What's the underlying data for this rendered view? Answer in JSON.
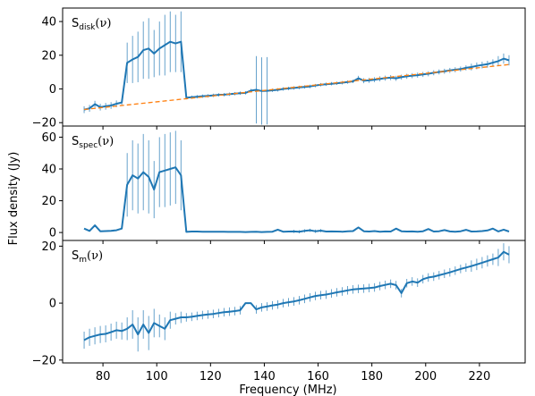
{
  "chart_data": [
    {
      "type": "line",
      "panel_label": {
        "base": "S",
        "sub": "disk",
        "arg": "(ν)"
      },
      "x": [
        73,
        75,
        77,
        79,
        81,
        83,
        85,
        87,
        89,
        91,
        93,
        95,
        97,
        99,
        101,
        103,
        105,
        107,
        109,
        111,
        113,
        115,
        117,
        119,
        121,
        123,
        125,
        127,
        129,
        131,
        133,
        135,
        137,
        139,
        141,
        143,
        145,
        147,
        149,
        151,
        153,
        155,
        157,
        159,
        161,
        163,
        165,
        167,
        169,
        171,
        173,
        175,
        177,
        179,
        181,
        183,
        185,
        187,
        189,
        191,
        193,
        195,
        197,
        199,
        201,
        203,
        205,
        207,
        209,
        211,
        213,
        215,
        217,
        219,
        221,
        223,
        225,
        227,
        229,
        231
      ],
      "series": [
        {
          "values": [
            -12.3,
            -11.5,
            -9,
            -10.8,
            -10.3,
            -9.8,
            -8.8,
            -8,
            15.5,
            17.5,
            19,
            23,
            24,
            21,
            24,
            26,
            28,
            27,
            28,
            -5.2,
            -4.9,
            -4.6,
            -4.3,
            -4.1,
            -3.8,
            -3.5,
            -3.4,
            -3.1,
            -2.8,
            -2.5,
            -2.3,
            -1,
            -0.5,
            -1.2,
            -1.1,
            -0.8,
            -0.5,
            0,
            0.3,
            0.6,
            0.9,
            1.2,
            1.5,
            2,
            2.5,
            2.8,
            3.1,
            3.4,
            3.7,
            4.1,
            4.5,
            6.3,
            4.9,
            5.1,
            5.5,
            6,
            6.4,
            6.7,
            6.3,
            7,
            7.5,
            7.9,
            8.2,
            8.6,
            9,
            9.6,
            10.1,
            10.5,
            11,
            11.4,
            11.8,
            12.5,
            13,
            13.7,
            14.2,
            14.7,
            15.6,
            16.5,
            18,
            17
          ],
          "errors": [
            2,
            2,
            2,
            2,
            2,
            2,
            2,
            2,
            12,
            14,
            15,
            17,
            18,
            14,
            16,
            18,
            18,
            17,
            18,
            1,
            1,
            1,
            1,
            1,
            1,
            1,
            1,
            1,
            1,
            1,
            1,
            1,
            20,
            20,
            20,
            1,
            1,
            1,
            1,
            1,
            1,
            1,
            1,
            1,
            1,
            1,
            1,
            1,
            1,
            1,
            1,
            1.5,
            1.5,
            1.5,
            1.5,
            1.5,
            1.5,
            1.5,
            1.5,
            1.5,
            1.5,
            1.5,
            1.5,
            1.5,
            1.5,
            1.5,
            1.5,
            1.5,
            1.5,
            1.5,
            1.5,
            1.5,
            2,
            2,
            2,
            2,
            2,
            3,
            3,
            3
          ],
          "color": "#1f77b4"
        },
        {
          "x": [
            73,
            231
          ],
          "values": [
            -12.2,
            14.5
          ],
          "line_style": "dashed",
          "color": "#ff7f0e"
        }
      ],
      "yticks": [
        -20,
        0,
        20,
        40
      ],
      "ylim": [
        -22,
        48
      ]
    },
    {
      "type": "line",
      "panel_label": {
        "base": "S",
        "sub": "spec",
        "arg": "(ν)"
      },
      "x": [
        73,
        75,
        77,
        79,
        81,
        83,
        85,
        87,
        89,
        91,
        93,
        95,
        97,
        99,
        101,
        103,
        105,
        107,
        109,
        111,
        113,
        115,
        117,
        119,
        121,
        123,
        125,
        127,
        129,
        131,
        133,
        135,
        137,
        139,
        141,
        143,
        145,
        147,
        149,
        151,
        153,
        155,
        157,
        159,
        161,
        163,
        165,
        167,
        169,
        171,
        173,
        175,
        177,
        179,
        181,
        183,
        185,
        187,
        189,
        191,
        193,
        195,
        197,
        199,
        201,
        203,
        205,
        207,
        209,
        211,
        213,
        215,
        217,
        219,
        221,
        223,
        225,
        227,
        229,
        231
      ],
      "series": [
        {
          "values": [
            2.5,
            1,
            4.5,
            0.8,
            0.9,
            1.1,
            1.4,
            2.5,
            30,
            36,
            34,
            38,
            35,
            27,
            38,
            39,
            40,
            41,
            36,
            0.4,
            0.6,
            0.6,
            0.5,
            0.5,
            0.5,
            0.5,
            0.5,
            0.4,
            0.4,
            0.4,
            0.3,
            0.4,
            0.5,
            0.3,
            0.4,
            0.5,
            1.8,
            0.5,
            0.6,
            0.7,
            0.5,
            1,
            1.4,
            0.8,
            1.2,
            0.6,
            0.7,
            0.6,
            0.5,
            0.8,
            0.9,
            3.2,
            0.8,
            0.6,
            0.9,
            0.5,
            0.7,
            0.6,
            2.5,
            0.8,
            0.6,
            0.7,
            0.5,
            0.8,
            2.2,
            0.6,
            0.8,
            1.5,
            0.7,
            0.5,
            0.8,
            1.7,
            0.6,
            0.7,
            0.9,
            1.3,
            2.5,
            0.7,
            1.8,
            0.6
          ],
          "errors": [
            0,
            0,
            0,
            0,
            0,
            0,
            0,
            0,
            20,
            22,
            22,
            24,
            23,
            18,
            22,
            23,
            23,
            23,
            22,
            0,
            0,
            0,
            0,
            0,
            0,
            0,
            0,
            0,
            0,
            0,
            0,
            0,
            0,
            0,
            0,
            0,
            0,
            0,
            0,
            1,
            1,
            1,
            1,
            1,
            1,
            0,
            0,
            0,
            0,
            0,
            0,
            0,
            0,
            0,
            0,
            0,
            0,
            0,
            0,
            0,
            0,
            0,
            0,
            0,
            0,
            0,
            0,
            0,
            0,
            0,
            0,
            0,
            0,
            0,
            0,
            0,
            0,
            0,
            0,
            0
          ],
          "color": "#1f77b4"
        }
      ],
      "yticks": [
        0,
        20,
        40,
        60
      ],
      "ylim": [
        -5,
        67
      ]
    },
    {
      "type": "line",
      "panel_label": {
        "base": "S",
        "sub": "m",
        "arg": "(ν)"
      },
      "x": [
        73,
        75,
        77,
        79,
        81,
        83,
        85,
        87,
        89,
        91,
        93,
        95,
        97,
        99,
        101,
        103,
        105,
        107,
        109,
        111,
        113,
        115,
        117,
        119,
        121,
        123,
        125,
        127,
        129,
        131,
        133,
        135,
        137,
        139,
        141,
        143,
        145,
        147,
        149,
        151,
        153,
        155,
        157,
        159,
        161,
        163,
        165,
        167,
        169,
        171,
        173,
        175,
        177,
        179,
        181,
        183,
        185,
        187,
        189,
        191,
        193,
        195,
        197,
        199,
        201,
        203,
        205,
        207,
        209,
        211,
        213,
        215,
        217,
        219,
        221,
        223,
        225,
        227,
        229,
        231
      ],
      "series": [
        {
          "values": [
            -13,
            -12,
            -11.5,
            -11,
            -10.8,
            -10.2,
            -9.5,
            -9.8,
            -9,
            -7.5,
            -11,
            -7.5,
            -10.5,
            -7,
            -8,
            -9,
            -6,
            -5.5,
            -5,
            -5,
            -4.8,
            -4.5,
            -4.2,
            -4,
            -3.8,
            -3.5,
            -3.2,
            -3,
            -2.8,
            -2.5,
            0,
            0,
            -2.2,
            -1.5,
            -1.2,
            -0.8,
            -0.5,
            0,
            0.3,
            0.6,
            1,
            1.5,
            2,
            2.5,
            2.8,
            3,
            3.4,
            3.8,
            4.1,
            4.5,
            4.8,
            5,
            5.1,
            5.3,
            5.5,
            6,
            6.4,
            6.8,
            6.3,
            3.5,
            7,
            7.6,
            7.2,
            8.4,
            9,
            9.3,
            9.8,
            10.3,
            10.8,
            11.4,
            12,
            12.5,
            13,
            13.6,
            14.2,
            14.8,
            15.4,
            16,
            18,
            17
          ],
          "errors": [
            3,
            3,
            3,
            3,
            3,
            3,
            3,
            3,
            4,
            5,
            6,
            5,
            6,
            5,
            4,
            4,
            3,
            2,
            2,
            1.5,
            1.5,
            1.5,
            1.5,
            1.5,
            1.5,
            1.5,
            1.5,
            1.5,
            1.5,
            1.5,
            0,
            0,
            1.5,
            1.5,
            1.5,
            1.5,
            1.5,
            1.5,
            1.5,
            1.5,
            1.5,
            1.5,
            1.5,
            1.5,
            1.5,
            1.5,
            1.5,
            1.5,
            1.5,
            1.5,
            1.5,
            1.5,
            1.5,
            1.5,
            1.5,
            1.5,
            1.5,
            1.5,
            1.5,
            1.5,
            1.5,
            1.5,
            1.5,
            1.5,
            1.5,
            1.5,
            1.5,
            1.5,
            1.5,
            1.5,
            1.5,
            1.5,
            2,
            2,
            2,
            2,
            2,
            3,
            3,
            3
          ],
          "color": "#1f77b4"
        }
      ],
      "yticks": [
        -20,
        0,
        20
      ],
      "ylim": [
        -21,
        22
      ]
    }
  ],
  "x_axis": {
    "label": "Frequency (MHz)",
    "ticks": [
      80,
      100,
      120,
      140,
      160,
      180,
      200,
      220
    ],
    "xlim": [
      65,
      237
    ]
  },
  "ylabel": "Flux density (Jy)"
}
